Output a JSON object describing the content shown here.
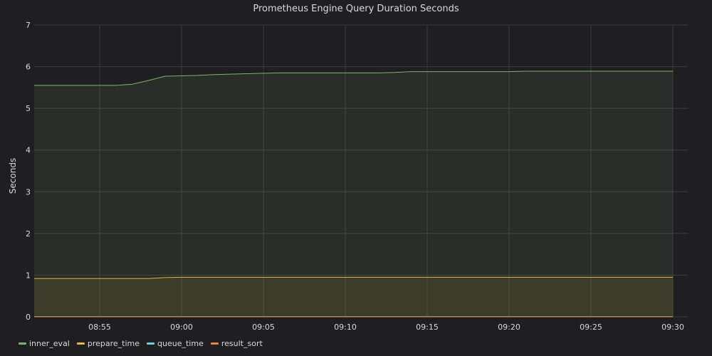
{
  "panel": {
    "title": "Prometheus Engine Query Duration Seconds"
  },
  "chart_data": {
    "type": "area",
    "title": "Prometheus Engine Query Duration Seconds",
    "xlabel": "",
    "ylabel": "Seconds",
    "x_range": [
      "08:51",
      "09:30"
    ],
    "ylim": [
      0,
      7
    ],
    "y_ticks": [
      0,
      1,
      2,
      3,
      4,
      5,
      6,
      7
    ],
    "x_ticks": [
      "08:55",
      "09:00",
      "09:05",
      "09:10",
      "09:15",
      "09:20",
      "09:25",
      "09:30"
    ],
    "grid": true,
    "legend_position": "bottom-left",
    "x": [
      "08:51",
      "08:52",
      "08:53",
      "08:54",
      "08:55",
      "08:56",
      "08:57",
      "08:58",
      "08:59",
      "09:00",
      "09:01",
      "09:02",
      "09:03",
      "09:04",
      "09:05",
      "09:06",
      "09:07",
      "09:08",
      "09:09",
      "09:10",
      "09:11",
      "09:12",
      "09:13",
      "09:14",
      "09:15",
      "09:16",
      "09:17",
      "09:18",
      "09:19",
      "09:20",
      "09:21",
      "09:22",
      "09:23",
      "09:24",
      "09:25",
      "09:26",
      "09:27",
      "09:28",
      "09:29",
      "09:30"
    ],
    "series": [
      {
        "name": "inner_eval",
        "color": "#7eb26d",
        "values": [
          5.55,
          5.55,
          5.55,
          5.55,
          5.55,
          5.55,
          5.58,
          5.67,
          5.77,
          5.78,
          5.79,
          5.81,
          5.82,
          5.83,
          5.84,
          5.85,
          5.85,
          5.85,
          5.85,
          5.85,
          5.85,
          5.85,
          5.86,
          5.88,
          5.88,
          5.88,
          5.88,
          5.88,
          5.88,
          5.88,
          5.89,
          5.89,
          5.89,
          5.89,
          5.89,
          5.89,
          5.89,
          5.89,
          5.89,
          5.89
        ]
      },
      {
        "name": "prepare_time",
        "color": "#eab839",
        "values": [
          0.92,
          0.92,
          0.92,
          0.92,
          0.92,
          0.92,
          0.92,
          0.92,
          0.94,
          0.95,
          0.95,
          0.95,
          0.95,
          0.95,
          0.95,
          0.95,
          0.95,
          0.95,
          0.95,
          0.95,
          0.95,
          0.95,
          0.95,
          0.95,
          0.95,
          0.95,
          0.95,
          0.95,
          0.95,
          0.95,
          0.95,
          0.95,
          0.95,
          0.95,
          0.95,
          0.95,
          0.95,
          0.95,
          0.95,
          0.95
        ]
      },
      {
        "name": "queue_time",
        "color": "#6ed0e0",
        "values": [
          0.005,
          0.005,
          0.005,
          0.005,
          0.005,
          0.005,
          0.005,
          0.005,
          0.005,
          0.005,
          0.005,
          0.005,
          0.005,
          0.005,
          0.005,
          0.005,
          0.005,
          0.005,
          0.005,
          0.005,
          0.005,
          0.005,
          0.005,
          0.005,
          0.005,
          0.005,
          0.005,
          0.005,
          0.005,
          0.005,
          0.005,
          0.005,
          0.005,
          0.005,
          0.005,
          0.005,
          0.005,
          0.005,
          0.005,
          0.005
        ]
      },
      {
        "name": "result_sort",
        "color": "#ef843c",
        "values": [
          0.002,
          0.002,
          0.002,
          0.002,
          0.002,
          0.002,
          0.002,
          0.002,
          0.002,
          0.002,
          0.002,
          0.002,
          0.002,
          0.002,
          0.002,
          0.002,
          0.002,
          0.002,
          0.002,
          0.002,
          0.002,
          0.002,
          0.002,
          0.002,
          0.002,
          0.002,
          0.002,
          0.002,
          0.002,
          0.002,
          0.002,
          0.002,
          0.002,
          0.002,
          0.002,
          0.002,
          0.002,
          0.002,
          0.002,
          0.002
        ]
      }
    ]
  },
  "legend": {
    "items": [
      {
        "label": "inner_eval",
        "color": "#7eb26d"
      },
      {
        "label": "prepare_time",
        "color": "#eab839"
      },
      {
        "label": "queue_time",
        "color": "#6ed0e0"
      },
      {
        "label": "result_sort",
        "color": "#ef843c"
      }
    ]
  }
}
